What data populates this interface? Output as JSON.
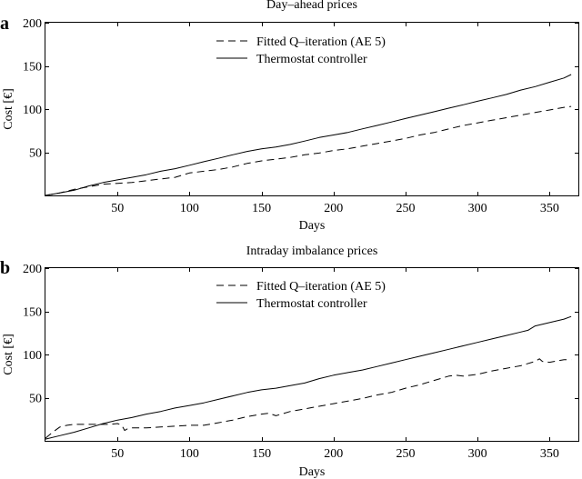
{
  "chart_data": [
    {
      "type": "line",
      "panel_label": "a",
      "title": "Day–ahead prices",
      "xlabel": "Days",
      "ylabel": "Cost [€]",
      "xlim": [
        0,
        370
      ],
      "ylim": [
        0,
        200
      ],
      "x_ticks": [
        50,
        100,
        150,
        200,
        250,
        300,
        350
      ],
      "y_ticks": [
        50,
        100,
        150,
        200
      ],
      "grid": false,
      "legend_position": "top-center",
      "series": [
        {
          "name": "Fitted Q–iteration (AE 5)",
          "style": "dashed",
          "x": [
            0,
            10,
            20,
            30,
            40,
            50,
            60,
            70,
            80,
            90,
            100,
            110,
            120,
            130,
            140,
            150,
            160,
            170,
            180,
            190,
            200,
            210,
            220,
            230,
            240,
            250,
            260,
            270,
            280,
            290,
            300,
            310,
            320,
            330,
            340,
            350,
            360,
            365
          ],
          "y": [
            0,
            3,
            7,
            10,
            13,
            14,
            15,
            17,
            19,
            21,
            26,
            28,
            30,
            33,
            37,
            40,
            42,
            44,
            47,
            49,
            52,
            54,
            57,
            60,
            63,
            66,
            70,
            73,
            77,
            81,
            84,
            87,
            90,
            93,
            96,
            99,
            102,
            103
          ]
        },
        {
          "name": "Thermostat controller",
          "style": "solid",
          "x": [
            0,
            10,
            20,
            30,
            40,
            50,
            60,
            70,
            80,
            90,
            100,
            110,
            120,
            130,
            140,
            150,
            160,
            170,
            180,
            190,
            200,
            210,
            220,
            230,
            240,
            250,
            260,
            270,
            280,
            290,
            300,
            310,
            320,
            330,
            340,
            350,
            360,
            365
          ],
          "y": [
            0,
            3,
            6,
            11,
            15,
            18,
            21,
            24,
            28,
            31,
            35,
            39,
            43,
            47,
            51,
            54,
            56,
            59,
            63,
            67,
            70,
            73,
            77,
            81,
            85,
            89,
            93,
            97,
            101,
            105,
            109,
            113,
            117,
            122,
            126,
            131,
            136,
            140
          ]
        }
      ]
    },
    {
      "type": "line",
      "panel_label": "b",
      "title": "Intraday imbalance prices",
      "xlabel": "Days",
      "ylabel": "Cost [€]",
      "xlim": [
        0,
        370
      ],
      "ylim": [
        0,
        200
      ],
      "x_ticks": [
        50,
        100,
        150,
        200,
        250,
        300,
        350
      ],
      "y_ticks": [
        50,
        100,
        150,
        200
      ],
      "grid": false,
      "legend_position": "top-center",
      "series": [
        {
          "name": "Fitted Q–iteration (AE 5)",
          "style": "dashed",
          "x": [
            0,
            5,
            10,
            15,
            20,
            30,
            40,
            45,
            50,
            53,
            55,
            57,
            60,
            70,
            80,
            90,
            100,
            110,
            120,
            130,
            140,
            150,
            155,
            160,
            170,
            180,
            190,
            200,
            210,
            220,
            230,
            240,
            250,
            260,
            270,
            280,
            285,
            290,
            300,
            310,
            320,
            330,
            340,
            343,
            345,
            350,
            360,
            365
          ],
          "y": [
            3,
            10,
            16,
            18,
            19,
            19,
            19,
            19,
            20,
            18,
            12,
            14,
            15,
            15,
            16,
            17,
            18,
            18,
            21,
            24,
            28,
            31,
            32,
            29,
            34,
            37,
            40,
            43,
            46,
            49,
            53,
            56,
            61,
            65,
            70,
            75,
            76,
            75,
            77,
            81,
            84,
            87,
            92,
            95,
            92,
            91,
            94,
            94
          ]
        },
        {
          "name": "Thermostat controller",
          "style": "solid",
          "x": [
            0,
            10,
            20,
            30,
            40,
            50,
            60,
            70,
            80,
            90,
            100,
            110,
            120,
            130,
            140,
            150,
            160,
            170,
            180,
            190,
            200,
            210,
            220,
            230,
            240,
            250,
            260,
            270,
            280,
            290,
            300,
            310,
            320,
            330,
            335,
            340,
            350,
            360,
            365
          ],
          "y": [
            2,
            6,
            10,
            15,
            20,
            24,
            27,
            31,
            34,
            38,
            41,
            44,
            48,
            52,
            56,
            59,
            61,
            64,
            67,
            72,
            76,
            79,
            82,
            86,
            90,
            94,
            98,
            102,
            106,
            110,
            114,
            118,
            122,
            126,
            128,
            133,
            137,
            141,
            144
          ]
        }
      ]
    }
  ]
}
